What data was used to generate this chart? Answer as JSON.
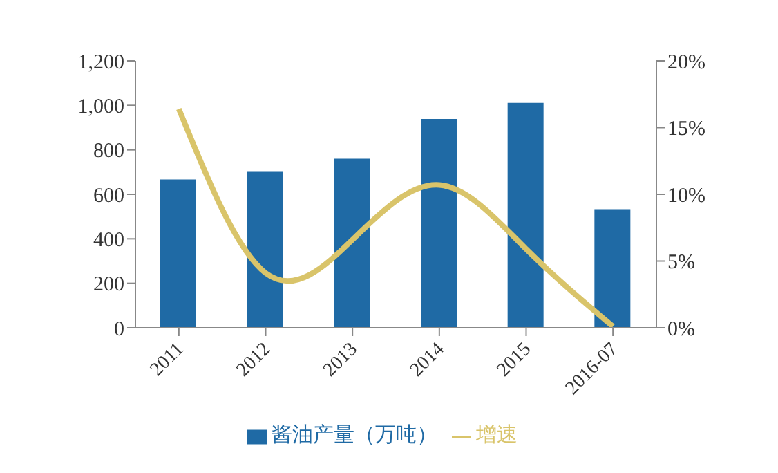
{
  "chart_data": {
    "type": "bar",
    "categories": [
      "2011",
      "2012",
      "2013",
      "2014",
      "2015",
      "2016-07"
    ],
    "series": [
      {
        "name": "酱油产量（万吨）",
        "color": "#1f6aa5",
        "values": [
          667,
          701,
          760,
          939,
          1011,
          533
        ]
      },
      {
        "name": "增速",
        "type": "line",
        "axis": "y2",
        "color": "#d9c46a",
        "values": [
          16.4,
          4.1,
          6.6,
          10.7,
          5.9,
          0.1
        ]
      }
    ],
    "ylim": [
      0,
      1200
    ],
    "yticks": [
      0,
      200,
      400,
      600,
      800,
      {
        "value": 1000,
        "label": "1,000"
      },
      {
        "value": 1200,
        "label": "1,200"
      }
    ],
    "y2lim": [
      0,
      20
    ],
    "y2ticks": [
      {
        "value": 0,
        "label": "0%"
      },
      {
        "value": 5,
        "label": "5%"
      },
      {
        "value": 10,
        "label": "10%"
      },
      {
        "value": 15,
        "label": "15%"
      },
      {
        "value": 20,
        "label": "20%"
      }
    ],
    "grid": false,
    "legend": "bottom",
    "marker": "none"
  }
}
